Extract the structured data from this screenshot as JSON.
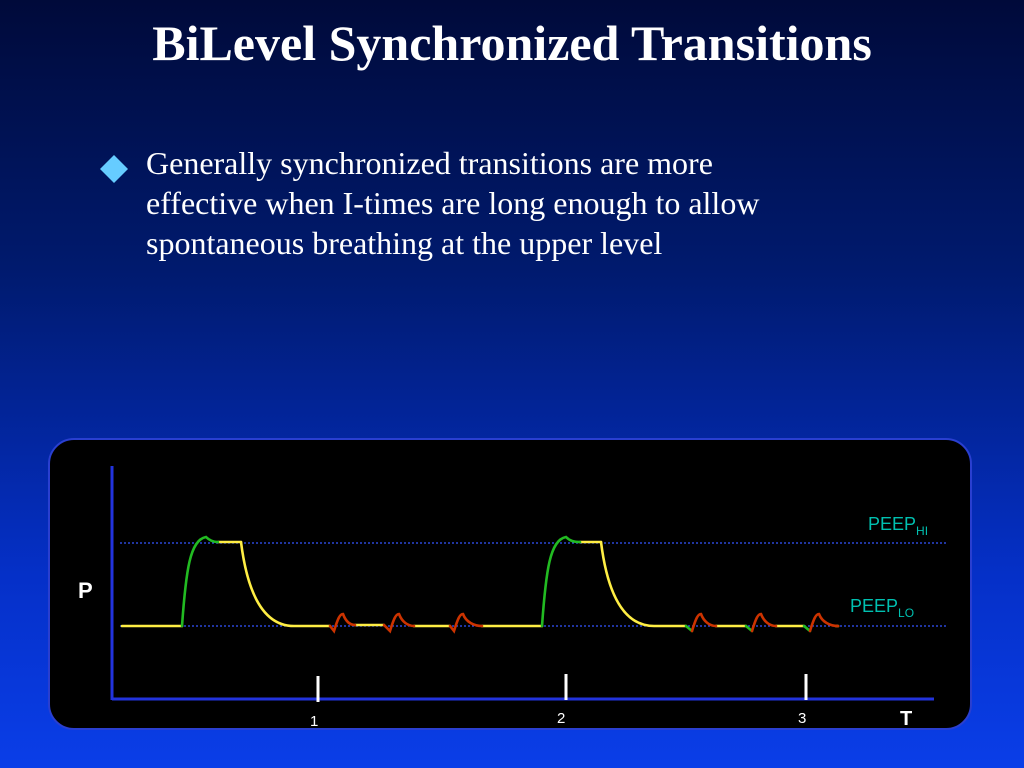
{
  "slide": {
    "title": "BiLevel Synchronized Transitions",
    "bullet": {
      "icon": "diamond-bullet-icon",
      "icon_color": "#66ccff",
      "lines": [
        "Generally synchronized transitions are more",
        "effective when I-times are long enough to allow",
        "spontaneous breathing at the upper level"
      ]
    }
  },
  "diagram": {
    "y_axis_label": "P",
    "x_axis_label": "T",
    "peep_hi": {
      "base": "PEEP",
      "sub": "HI"
    },
    "peep_lo": {
      "base": "PEEP",
      "sub": "LO"
    },
    "markers": [
      "1",
      "2",
      "3"
    ],
    "colors": {
      "axis": "#2233dd",
      "guide": "#3355ff",
      "label": "#00c0b0",
      "baseline": "#ffee44",
      "mandatory": "#22bb22",
      "spontaneous": "#cc3300"
    }
  }
}
